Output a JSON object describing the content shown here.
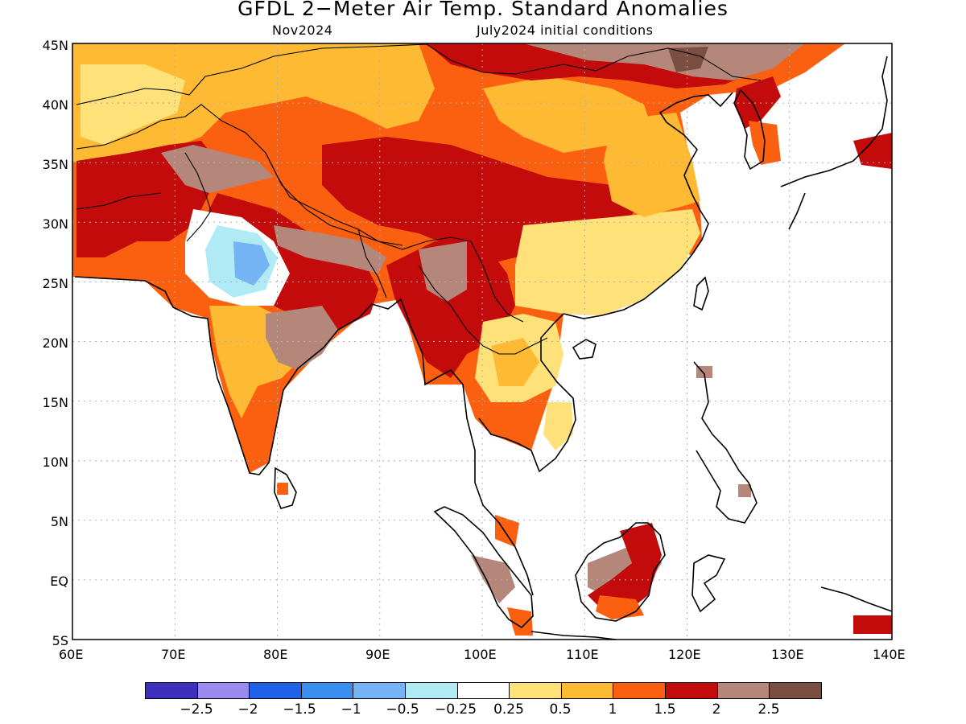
{
  "title": "GFDL 2−Meter Air Temp. Standard Anomalies",
  "subtitle_left": "Nov2024",
  "subtitle_right": "July2024 initial conditions",
  "colors": {
    "ocean": "#ffffff",
    "coast": "#000000",
    "grid": "#b0b0b0",
    "bins": [
      "#3c2fbd",
      "#9b8bf1",
      "#1f62e8",
      "#3b8ef0",
      "#74b4f5",
      "#b0eaf5",
      "#ffffff",
      "#ffe17a",
      "#fdba32",
      "#fb6010",
      "#c30b0b",
      "#b4877a",
      "#7a4e40"
    ]
  },
  "axes": {
    "lon_labels": [
      "60E",
      "70E",
      "80E",
      "90E",
      "100E",
      "110E",
      "120E",
      "130E",
      "140E"
    ],
    "lat_labels": [
      "45N",
      "40N",
      "35N",
      "30N",
      "25N",
      "20N",
      "15N",
      "10N",
      "5N",
      "EQ",
      "5S"
    ]
  },
  "colorbar": {
    "labels": [
      "−2.5",
      "−2",
      "−1.5",
      "−1",
      "−0.5",
      "−0.25",
      "0.25",
      "0.5",
      "1",
      "1.5",
      "2",
      "2.5"
    ]
  }
}
